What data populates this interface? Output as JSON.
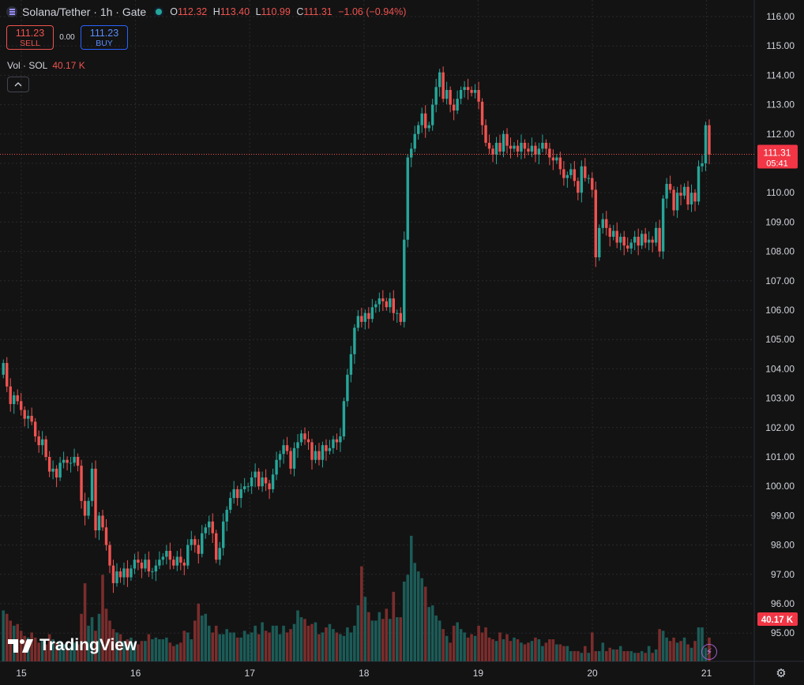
{
  "header": {
    "symbol_title": "Solana/Tether · 1h · Gate",
    "ohlc": {
      "o_label": "O",
      "o": "112.32",
      "h_label": "H",
      "h": "113.40",
      "l_label": "L",
      "l": "110.99",
      "c_label": "C",
      "c": "111.31",
      "change": "−1.06 (−0.94%)"
    }
  },
  "trade": {
    "sell_price": "111.23",
    "sell_label": "SELL",
    "spread": "0.00",
    "buy_price": "111.23",
    "buy_label": "BUY"
  },
  "volume_legend": {
    "label": "Vol · SOL",
    "value": "40.17 K"
  },
  "price_badge": {
    "price": "111.31",
    "countdown": "05:41"
  },
  "volume_badge": "40.17 K",
  "branding": "TradingView",
  "colors": {
    "up": "#26a69a",
    "down": "#ef5350",
    "up_vol": "#1c5b57",
    "down_vol": "#7a2d2c",
    "background": "#131313"
  },
  "icons": [
    "symbol-icon",
    "market-status-dot",
    "collapse-chevron-icon",
    "tradingview-logo-icon",
    "lightning-icon",
    "gear-icon"
  ],
  "chart_data": {
    "type": "candlestick",
    "interval": "1h",
    "y_axis_labels": [
      "116.00",
      "115.00",
      "114.00",
      "113.00",
      "112.00",
      "111.00",
      "110.00",
      "109.00",
      "108.00",
      "107.00",
      "106.00",
      "105.00",
      "104.00",
      "103.00",
      "102.00",
      "101.00",
      "100.00",
      "99.00",
      "98.00",
      "97.00",
      "96.00",
      "95.00"
    ],
    "ylim": [
      94.5,
      116.5
    ],
    "x_axis_labels": [
      "15",
      "16",
      "17",
      "18",
      "19",
      "20",
      "21"
    ],
    "grid": true,
    "ohlc_start": [
      103.8,
      104.8,
      102.9
    ],
    "close": [
      104.2,
      103.4,
      102.8,
      103.1,
      102.9,
      102.6,
      102.3,
      102.4,
      102.2,
      101.7,
      101.4,
      101.6,
      101.0,
      100.5,
      100.6,
      100.3,
      100.8,
      100.9,
      100.8,
      100.8,
      101.0,
      100.7,
      99.5,
      99.0,
      99.5,
      100.6,
      98.5,
      99.0,
      98.6,
      98.0,
      97.3,
      96.7,
      97.1,
      96.9,
      97.2,
      96.9,
      97.2,
      97.5,
      97.4,
      97.2,
      97.5,
      97.1,
      97.1,
      97.3,
      97.5,
      97.6,
      97.8,
      97.5,
      97.3,
      97.6,
      97.4,
      97.3,
      98.0,
      98.2,
      98.0,
      97.7,
      98.4,
      98.6,
      98.8,
      98.4,
      97.5,
      97.9,
      98.8,
      99.2,
      99.6,
      99.9,
      99.6,
      99.9,
      100.0,
      100.0,
      100.3,
      100.5,
      100.0,
      100.3,
      100.1,
      99.9,
      100.4,
      100.9,
      101.1,
      101.4,
      101.2,
      100.6,
      101.3,
      101.5,
      101.8,
      101.6,
      101.5,
      100.9,
      101.2,
      100.9,
      101.4,
      101.2,
      101.3,
      101.6,
      101.5,
      101.7,
      102.9,
      103.8,
      104.5,
      105.4,
      105.8,
      105.6,
      105.9,
      105.7,
      106.1,
      106.2,
      106.4,
      106.3,
      106.1,
      106.4,
      105.9,
      105.9,
      105.6,
      108.4,
      111.2,
      111.5,
      112.0,
      112.3,
      112.7,
      112.2,
      112.3,
      113.0,
      113.6,
      114.1,
      113.2,
      113.5,
      113.0,
      112.8,
      113.2,
      113.5,
      113.6,
      113.5,
      113.4,
      113.5,
      113.1,
      112.3,
      111.7,
      111.5,
      111.3,
      111.7,
      111.4,
      112.0,
      111.6,
      111.5,
      111.6,
      111.4,
      111.7,
      111.5,
      111.4,
      111.6,
      111.3,
      111.5,
      111.7,
      111.5,
      111.2,
      111.1,
      111.2,
      110.8,
      110.5,
      110.6,
      110.8,
      110.4,
      110.0,
      110.9,
      110.5,
      110.5,
      110.1,
      107.8,
      108.8,
      109.1,
      108.8,
      108.5,
      108.7,
      108.3,
      108.5,
      108.2,
      108.1,
      108.3,
      108.5,
      108.2,
      108.6,
      108.3,
      108.4,
      108.3,
      108.8,
      108.0,
      109.8,
      110.3,
      110.1,
      109.4,
      110.0,
      109.9,
      110.2,
      109.6,
      110.0,
      109.7,
      110.9,
      111.0,
      112.3,
      111.3
    ],
    "volume_scale": [
      0.3,
      0.28,
      0.24,
      0.21,
      0.22,
      0.18,
      0.15,
      0.14,
      0.17,
      0.14,
      0.11,
      0.13,
      0.1,
      0.16,
      0.13,
      0.11,
      0.12,
      0.1,
      0.08,
      0.09,
      0.11,
      0.1,
      0.28,
      0.46,
      0.21,
      0.26,
      0.18,
      0.28,
      0.51,
      0.31,
      0.24,
      0.19,
      0.17,
      0.16,
      0.12,
      0.13,
      0.14,
      0.11,
      0.1,
      0.12,
      0.12,
      0.16,
      0.13,
      0.14,
      0.13,
      0.13,
      0.14,
      0.11,
      0.09,
      0.1,
      0.11,
      0.18,
      0.17,
      0.13,
      0.24,
      0.34,
      0.27,
      0.28,
      0.21,
      0.17,
      0.21,
      0.16,
      0.16,
      0.19,
      0.17,
      0.17,
      0.14,
      0.14,
      0.18,
      0.16,
      0.17,
      0.21,
      0.16,
      0.23,
      0.18,
      0.17,
      0.21,
      0.21,
      0.16,
      0.21,
      0.17,
      0.19,
      0.22,
      0.3,
      0.26,
      0.25,
      0.21,
      0.22,
      0.23,
      0.16,
      0.17,
      0.2,
      0.22,
      0.19,
      0.17,
      0.16,
      0.15,
      0.2,
      0.17,
      0.21,
      0.33,
      0.56,
      0.38,
      0.29,
      0.24,
      0.24,
      0.29,
      0.25,
      0.31,
      0.25,
      0.41,
      0.26,
      0.26,
      0.47,
      0.51,
      0.74,
      0.58,
      0.53,
      0.49,
      0.44,
      0.32,
      0.33,
      0.27,
      0.24,
      0.19,
      0.15,
      0.11,
      0.21,
      0.23,
      0.19,
      0.17,
      0.14,
      0.16,
      0.15,
      0.21,
      0.17,
      0.2,
      0.14,
      0.13,
      0.12,
      0.17,
      0.13,
      0.16,
      0.12,
      0.14,
      0.13,
      0.11,
      0.1,
      0.11,
      0.12,
      0.14,
      0.13,
      0.09,
      0.11,
      0.13,
      0.13,
      0.1,
      0.1,
      0.09,
      0.09,
      0.06,
      0.06,
      0.06,
      0.05,
      0.09,
      0.05,
      0.17,
      0.06,
      0.06,
      0.11,
      0.06,
      0.08,
      0.07,
      0.07,
      0.09,
      0.06,
      0.06,
      0.06,
      0.05,
      0.05,
      0.06,
      0.05,
      0.09,
      0.05,
      0.07,
      0.19,
      0.18,
      0.14,
      0.12,
      0.14,
      0.11,
      0.12,
      0.14,
      0.1,
      0.08,
      0.12,
      0.2,
      0.2,
      0.08,
      0.14
    ]
  }
}
